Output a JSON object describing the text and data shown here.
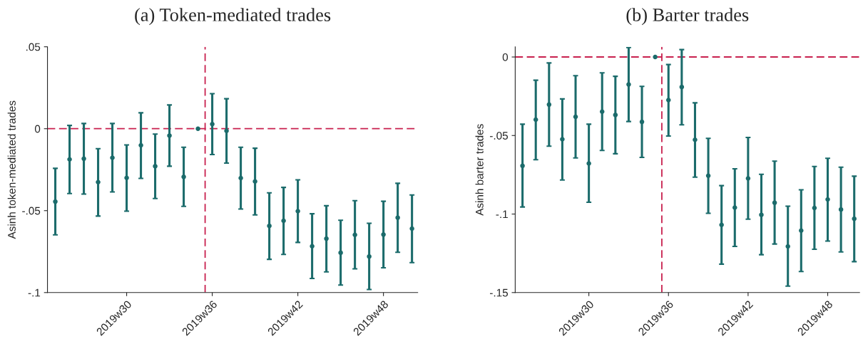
{
  "chart_data": [
    {
      "type": "scatter",
      "title": "(a) Token-mediated trades",
      "ylabel": "Asinh token-mediated trades",
      "categories": [
        null,
        null,
        null,
        null,
        null,
        "2019w30",
        null,
        null,
        null,
        null,
        null,
        "2019w36",
        null,
        null,
        null,
        null,
        null,
        "2019w42",
        null,
        null,
        null,
        null,
        null,
        "2019w48",
        null,
        null
      ],
      "series": [
        {
          "color": "#1b6b6b",
          "marker": "circle",
          "values": [
            -0.0445,
            -0.0187,
            -0.0183,
            -0.0326,
            -0.0177,
            -0.03,
            -0.0101,
            -0.0229,
            -0.0042,
            -0.0294,
            0,
            0.0028,
            -0.0013,
            -0.0301,
            -0.0322,
            -0.0593,
            -0.0562,
            -0.0503,
            -0.0717,
            -0.0671,
            -0.0757,
            -0.0648,
            -0.078,
            -0.0646,
            -0.0543,
            -0.061
          ],
          "errors": [
            [
              -0.0648,
              -0.0242
            ],
            [
              -0.0396,
              0.002
            ],
            [
              -0.0399,
              0.0032
            ],
            [
              -0.0533,
              -0.0122
            ],
            [
              -0.0386,
              0.0032
            ],
            [
              -0.0503,
              -0.0099
            ],
            [
              -0.0303,
              0.0097
            ],
            [
              -0.0426,
              -0.0033
            ],
            [
              -0.0229,
              0.0145
            ],
            [
              -0.0474,
              -0.0113
            ],
            null,
            [
              -0.0158,
              0.0214
            ],
            [
              -0.021,
              0.0183
            ],
            [
              -0.049,
              -0.0113
            ],
            [
              -0.0526,
              -0.0119
            ],
            [
              -0.0797,
              -0.0391
            ],
            [
              -0.0767,
              -0.0358
            ],
            [
              -0.0694,
              -0.0312
            ],
            [
              -0.0914,
              -0.0519
            ],
            [
              -0.0874,
              -0.047
            ],
            [
              -0.0954,
              -0.0559
            ],
            [
              -0.0855,
              -0.0439
            ],
            [
              -0.0981,
              -0.0577
            ],
            [
              -0.0849,
              -0.0443
            ],
            [
              -0.0754,
              -0.0333
            ],
            [
              -0.0817,
              -0.0404
            ]
          ]
        }
      ],
      "ylim": [
        -0.1,
        0.05
      ],
      "yticks": [
        {
          "value": -0.1,
          "label": "-.1"
        },
        {
          "value": -0.05,
          "label": "-.05"
        },
        0,
        {
          "value": 0.05,
          "label": ".05"
        }
      ],
      "ref_lines": [
        {
          "axis": "y",
          "value": 0,
          "color": "#c8204e",
          "line_style": "dashed"
        }
      ],
      "grid": false,
      "legend": false
    },
    {
      "type": "scatter",
      "title": "(b) Barter trades",
      "ylabel": "Asinh barter trades",
      "categories": [
        null,
        null,
        null,
        null,
        null,
        "2019w30",
        null,
        null,
        null,
        null,
        null,
        "2019w36",
        null,
        null,
        null,
        null,
        null,
        "2019w42",
        null,
        null,
        null,
        null,
        null,
        "2019w48",
        null,
        null
      ],
      "series": [
        {
          "color": "#1b6b6b",
          "marker": "circle",
          "values": [
            -0.0693,
            -0.0399,
            -0.0303,
            -0.0524,
            -0.0381,
            -0.0678,
            -0.0348,
            -0.0369,
            -0.0175,
            -0.0413,
            0,
            -0.0274,
            -0.0191,
            -0.0527,
            -0.0756,
            -0.1069,
            -0.0959,
            -0.0773,
            -0.1005,
            -0.0928,
            -0.1206,
            -0.1105,
            -0.0961,
            -0.0907,
            -0.0971,
            -0.103
          ],
          "errors": [
            [
              -0.0955,
              -0.0428
            ],
            [
              -0.0654,
              -0.0148
            ],
            [
              -0.0568,
              -0.0038
            ],
            [
              -0.0783,
              -0.0267
            ],
            [
              -0.0643,
              -0.0119
            ],
            [
              -0.0925,
              -0.0428
            ],
            [
              -0.0595,
              -0.0101
            ],
            [
              -0.0616,
              -0.0123
            ],
            [
              -0.0411,
              0.006
            ],
            [
              -0.0639,
              -0.0187
            ],
            null,
            [
              -0.0503,
              -0.0048
            ],
            [
              -0.0432,
              0.0047
            ],
            [
              -0.0765,
              -0.0292
            ],
            [
              -0.0995,
              -0.0518
            ],
            [
              -0.1319,
              -0.0819
            ],
            [
              -0.1206,
              -0.0712
            ],
            [
              -0.1033,
              -0.0512
            ],
            [
              -0.1259,
              -0.0747
            ],
            [
              -0.1191,
              -0.0663
            ],
            [
              -0.1459,
              -0.095
            ],
            [
              -0.1366,
              -0.0846
            ],
            [
              -0.1224,
              -0.0697
            ],
            [
              -0.1172,
              -0.0645
            ],
            [
              -0.1241,
              -0.0702
            ],
            [
              -0.1303,
              -0.0759
            ]
          ]
        }
      ],
      "ylim": [
        -0.15,
        0.0065
      ],
      "yticks": [
        {
          "value": -0.15,
          "label": "-.15"
        },
        {
          "value": -0.1,
          "label": "-.1"
        },
        {
          "value": -0.05,
          "label": "-.05"
        },
        0
      ],
      "ref_lines": [
        {
          "axis": "y",
          "value": 0,
          "color": "#c8204e",
          "line_style": "dashed"
        }
      ],
      "grid": false,
      "legend": false
    }
  ]
}
